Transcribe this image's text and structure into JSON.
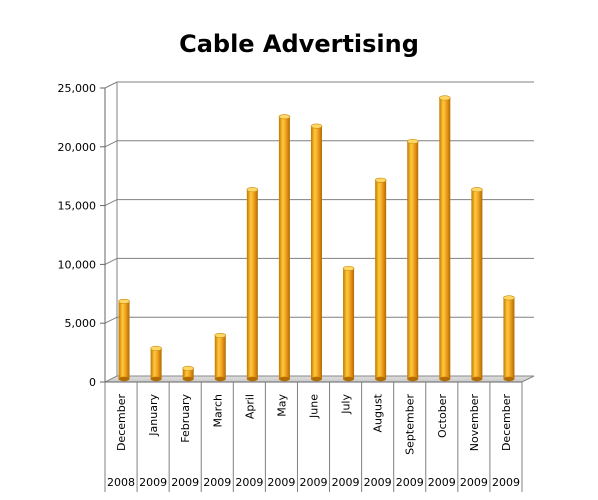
{
  "chart_data": {
    "type": "bar",
    "title": "Cable Advertising",
    "xlabel": "",
    "ylabel": "",
    "ylim": [
      0,
      25000
    ],
    "yticks": [
      "0",
      "5,000",
      "10,000",
      "15,000",
      "20,000",
      "25,000"
    ],
    "grid": true,
    "categories": [
      "December",
      "January",
      "February",
      "March",
      "April",
      "May",
      "June",
      "July",
      "August",
      "September",
      "October",
      "November",
      "December"
    ],
    "years": [
      "2008",
      "2009",
      "2009",
      "2009",
      "2009",
      "2009",
      "2009",
      "2009",
      "2009",
      "2009",
      "2009",
      "2009",
      "2009"
    ],
    "values": [
      6600,
      2600,
      900,
      3700,
      16100,
      22300,
      21500,
      9400,
      16900,
      20200,
      23900,
      16100,
      6900
    ],
    "bar_color": "#F5A623"
  }
}
